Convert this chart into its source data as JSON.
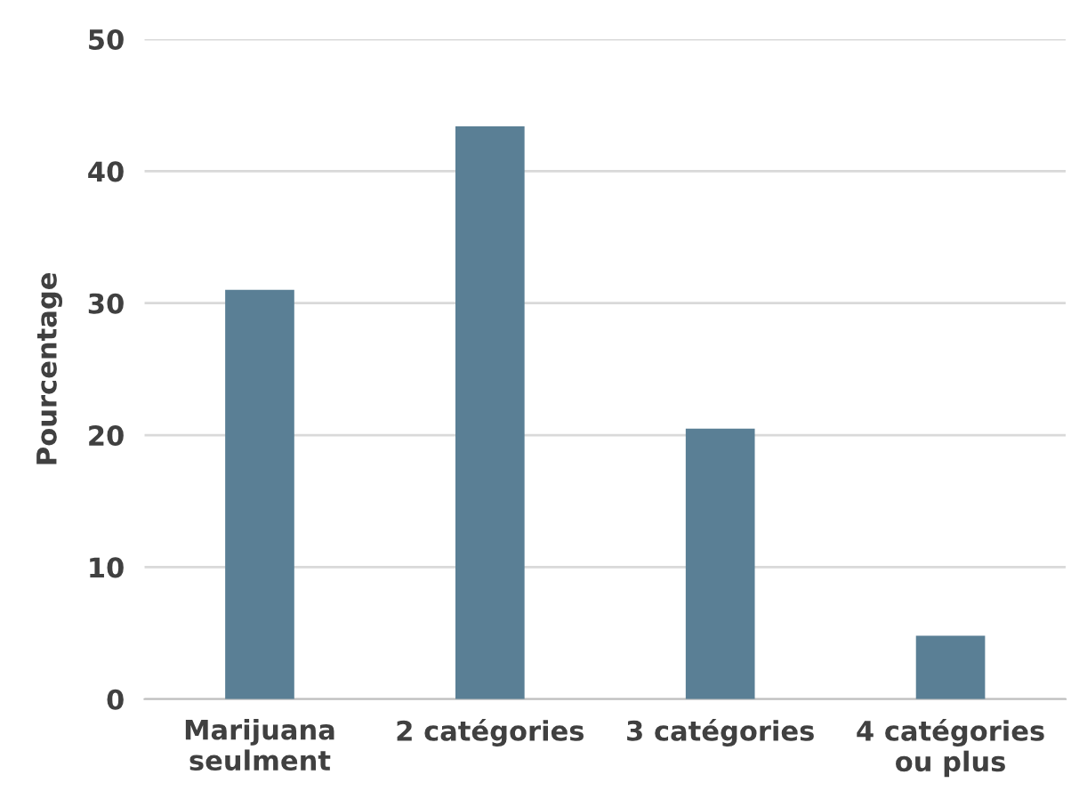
{
  "chart_data": {
    "type": "bar",
    "ylabel": "Pourcentage",
    "categories": [
      "Marijuana\nseulment",
      "2 catégories",
      "3 catégories",
      "4 catégories\nou plus"
    ],
    "values": [
      31.0,
      43.4,
      20.5,
      4.8
    ],
    "color": "#5a7f95",
    "ylim": [
      0,
      50
    ],
    "yticks": [
      0,
      10,
      20,
      30,
      40,
      50
    ],
    "grid": "y",
    "legend": false
  }
}
